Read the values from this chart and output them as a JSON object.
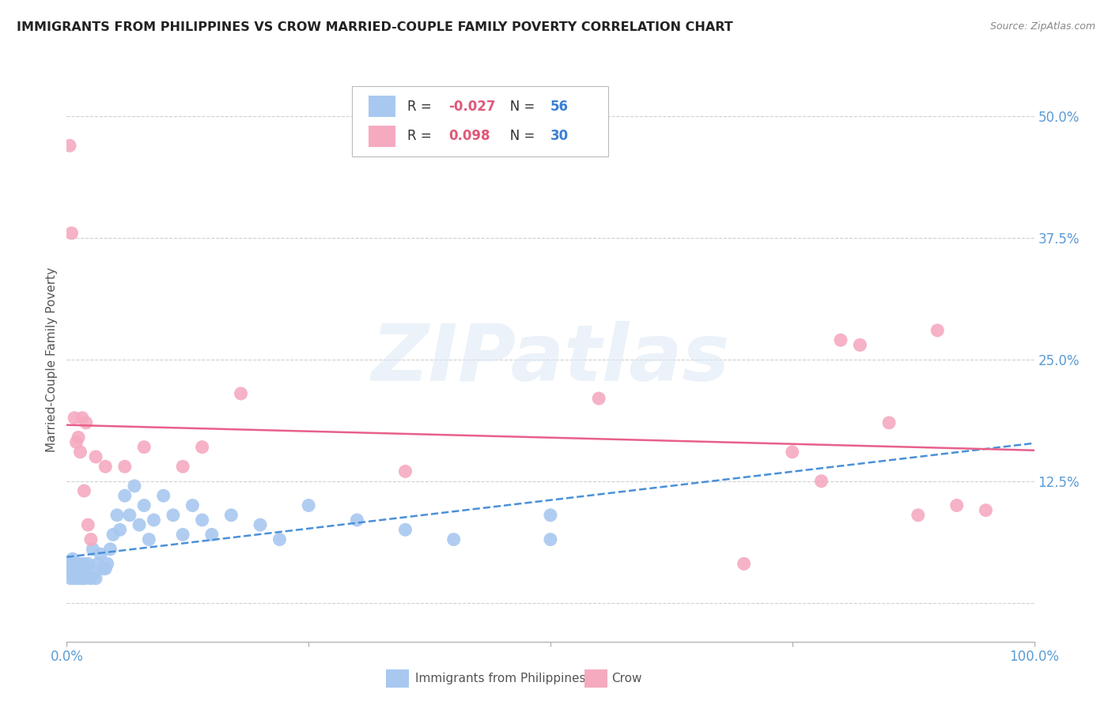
{
  "title": "IMMIGRANTS FROM PHILIPPINES VS CROW MARRIED-COUPLE FAMILY POVERTY CORRELATION CHART",
  "source": "Source: ZipAtlas.com",
  "ylabel": "Married-Couple Family Poverty",
  "watermark": "ZIPatlas",
  "xlim": [
    0,
    1.0
  ],
  "ylim": [
    -0.04,
    0.54
  ],
  "blue_R": "-0.027",
  "blue_N": "56",
  "pink_R": "0.098",
  "pink_N": "30",
  "blue_color": "#a8c8f0",
  "pink_color": "#f5aac0",
  "blue_line_color": "#4a90d9",
  "pink_line_color": "#e8608a",
  "axis_label_color": "#5b9bd5",
  "grid_color": "#d0d0d0",
  "background_color": "#ffffff",
  "blue_x": [
    0.002,
    0.003,
    0.004,
    0.005,
    0.006,
    0.007,
    0.008,
    0.009,
    0.01,
    0.011,
    0.012,
    0.013,
    0.014,
    0.015,
    0.016,
    0.017,
    0.018,
    0.019,
    0.02,
    0.021,
    0.022,
    0.025,
    0.027,
    0.028,
    0.03,
    0.032,
    0.035,
    0.038,
    0.04,
    0.042,
    0.045,
    0.048,
    0.052,
    0.055,
    0.06,
    0.065,
    0.07,
    0.075,
    0.08,
    0.085,
    0.09,
    0.1,
    0.11,
    0.12,
    0.13,
    0.14,
    0.15,
    0.17,
    0.2,
    0.22,
    0.25,
    0.3,
    0.35,
    0.4,
    0.5,
    0.5
  ],
  "blue_y": [
    0.03,
    0.04,
    0.025,
    0.035,
    0.045,
    0.03,
    0.025,
    0.04,
    0.03,
    0.035,
    0.025,
    0.04,
    0.03,
    0.035,
    0.025,
    0.04,
    0.03,
    0.025,
    0.035,
    0.03,
    0.04,
    0.025,
    0.055,
    0.03,
    0.025,
    0.04,
    0.05,
    0.035,
    0.035,
    0.04,
    0.055,
    0.07,
    0.09,
    0.075,
    0.11,
    0.09,
    0.12,
    0.08,
    0.1,
    0.065,
    0.085,
    0.11,
    0.09,
    0.07,
    0.1,
    0.085,
    0.07,
    0.09,
    0.08,
    0.065,
    0.1,
    0.085,
    0.075,
    0.065,
    0.09,
    0.065
  ],
  "pink_x": [
    0.003,
    0.005,
    0.008,
    0.01,
    0.012,
    0.014,
    0.016,
    0.018,
    0.02,
    0.022,
    0.025,
    0.03,
    0.04,
    0.06,
    0.08,
    0.12,
    0.14,
    0.18,
    0.35,
    0.55,
    0.7,
    0.75,
    0.78,
    0.8,
    0.82,
    0.85,
    0.88,
    0.9,
    0.92,
    0.95
  ],
  "pink_y": [
    0.47,
    0.38,
    0.19,
    0.165,
    0.17,
    0.155,
    0.19,
    0.115,
    0.185,
    0.08,
    0.065,
    0.15,
    0.14,
    0.14,
    0.16,
    0.14,
    0.16,
    0.215,
    0.135,
    0.21,
    0.04,
    0.155,
    0.125,
    0.27,
    0.265,
    0.185,
    0.09,
    0.28,
    0.1,
    0.095
  ]
}
